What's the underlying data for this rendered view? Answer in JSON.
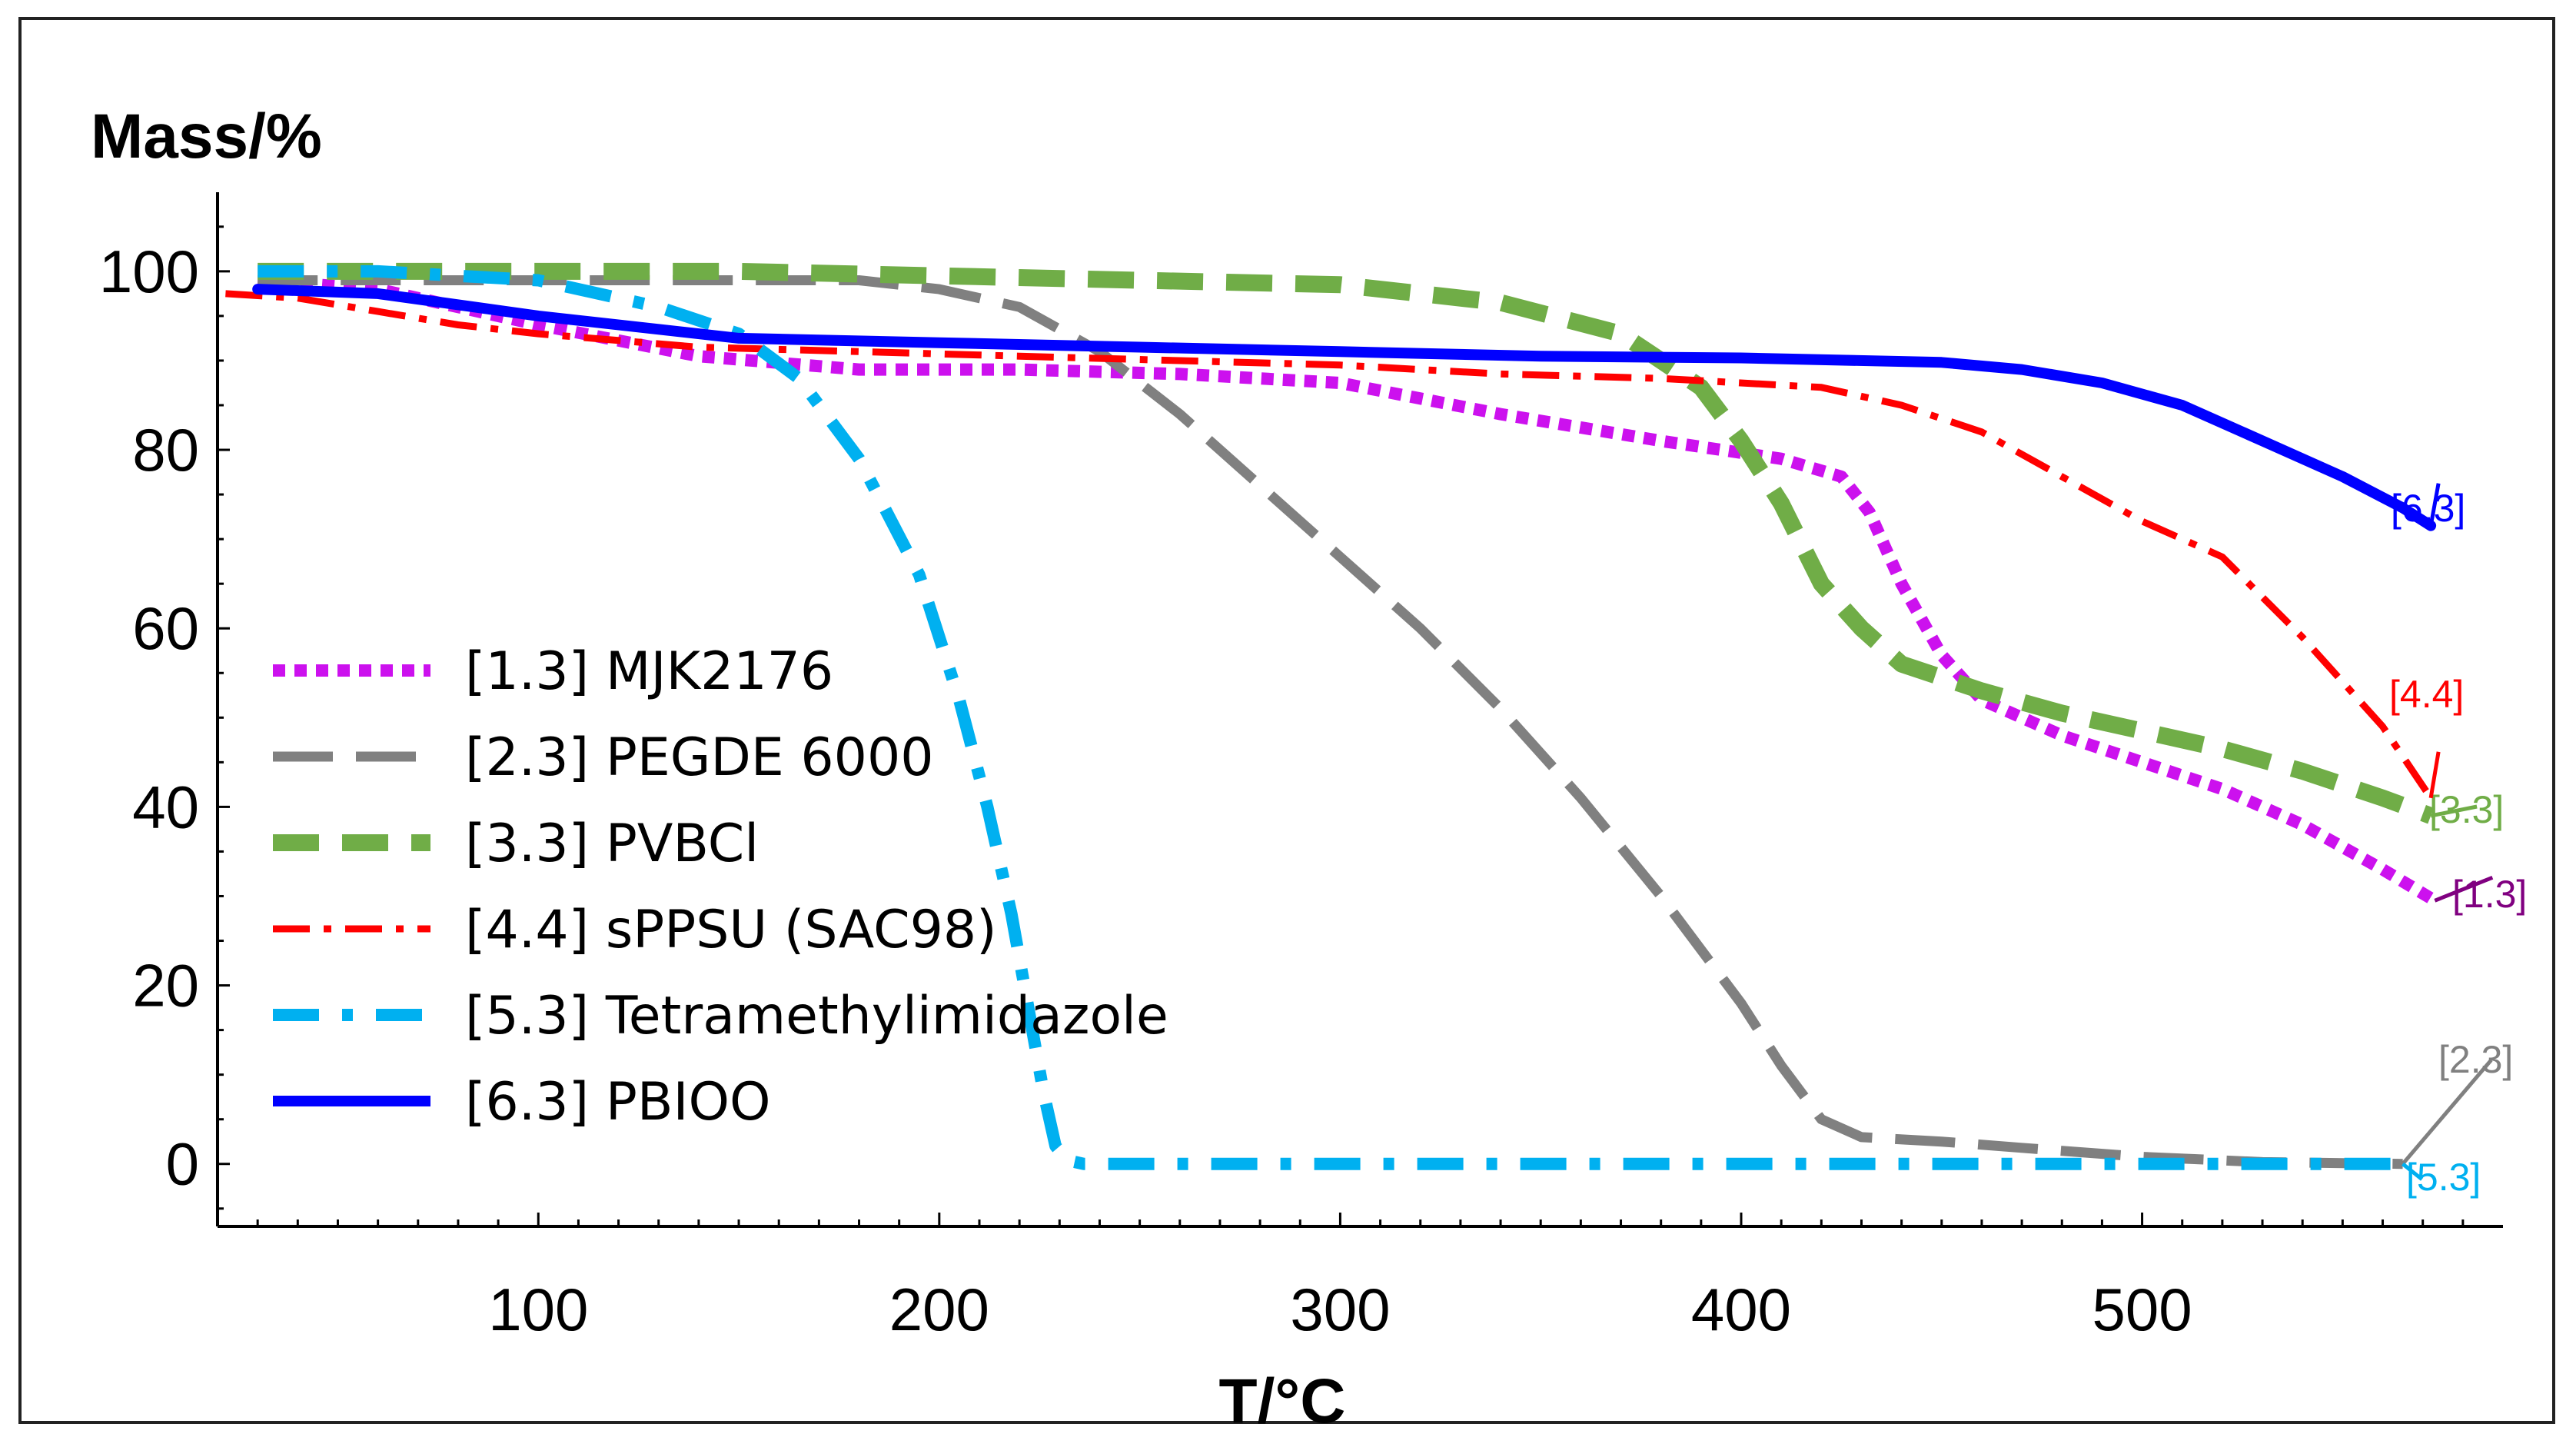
{
  "chart_data": {
    "type": "line",
    "title": "",
    "xlabel": "T/°C",
    "ylabel": "Mass/%",
    "xlim": [
      20,
      590
    ],
    "ylim": [
      -7,
      108
    ],
    "xticks": [
      100,
      200,
      300,
      400,
      500
    ],
    "xtick_labels": [
      "100",
      "200",
      "300",
      "400",
      "500"
    ],
    "yticks": [
      0,
      20,
      40,
      60,
      80,
      100
    ],
    "ytick_labels": [
      "0",
      "20",
      "40",
      "60",
      "80",
      "100"
    ],
    "legend_position": "bottom-left",
    "series": [
      {
        "id": "s1",
        "name": "[1.3] MJK2176",
        "end_label": "[1.3]",
        "color": "#cc11ee",
        "label_color": "#800080",
        "style": "dotted",
        "x": [
          30,
          60,
          100,
          140,
          180,
          220,
          260,
          300,
          340,
          380,
          410,
          425,
          432,
          440,
          450,
          460,
          480,
          500,
          520,
          540,
          560,
          573
        ],
        "y": [
          99,
          98,
          94,
          90.5,
          89,
          89,
          88.5,
          87.5,
          84,
          81,
          79,
          77,
          73,
          65,
          57,
          52,
          48,
          45,
          42,
          38,
          33,
          29.5
        ]
      },
      {
        "id": "s2",
        "name": "[2.3] PEGDE 6000",
        "end_label": "[2.3]",
        "color": "#808080",
        "label_color": "#808080",
        "style": "long-dash",
        "x": [
          30,
          60,
          100,
          140,
          180,
          200,
          220,
          240,
          260,
          280,
          300,
          320,
          340,
          360,
          380,
          400,
          410,
          420,
          430,
          450,
          470,
          500,
          530,
          565
        ],
        "y": [
          99,
          99,
          99,
          99,
          99,
          98,
          96,
          91,
          84,
          76,
          68,
          60,
          51,
          41,
          30,
          18,
          11,
          5,
          3,
          2.5,
          1.8,
          0.8,
          0.2,
          0
        ]
      },
      {
        "id": "s3",
        "name": "[3.3] PVBCl",
        "end_label": "[3.3]",
        "color": "#70ad47",
        "label_color": "#70ad47",
        "style": "dashed",
        "x": [
          30,
          60,
          100,
          150,
          200,
          250,
          300,
          340,
          370,
          390,
          400,
          410,
          420,
          430,
          440,
          460,
          480,
          500,
          520,
          540,
          560,
          572
        ],
        "y": [
          100,
          100,
          100,
          100,
          99.5,
          99,
          98.5,
          96.5,
          93,
          87,
          81,
          74,
          65,
          60,
          56,
          53,
          50.5,
          48.5,
          46.5,
          44,
          41,
          39
        ]
      },
      {
        "id": "s4",
        "name": "[4.4] sPPSU (SAC98)",
        "end_label": "[4.4]",
        "color": "#ff0000",
        "label_color": "#ff0000",
        "style": "dash-dot-dot",
        "x": [
          22,
          40,
          60,
          80,
          100,
          140,
          180,
          220,
          260,
          300,
          340,
          380,
          420,
          440,
          460,
          480,
          500,
          520,
          540,
          560,
          572
        ],
        "y": [
          97.5,
          97,
          95.5,
          94,
          93,
          91.5,
          91,
          90.5,
          90,
          89.5,
          88.5,
          88,
          87,
          85,
          82,
          77,
          72,
          68,
          59,
          49,
          41
        ]
      },
      {
        "id": "s5",
        "name": "[5.3] Tetramethylimidazole",
        "end_label": "[5.3]",
        "color": "#00b0f0",
        "label_color": "#00b0f0",
        "style": "dash-dot",
        "x": [
          30,
          60,
          100,
          130,
          150,
          165,
          180,
          195,
          205,
          212,
          218,
          222,
          226,
          229,
          232,
          236,
          250,
          300,
          400,
          500,
          565
        ],
        "y": [
          100,
          100,
          99,
          96,
          93,
          88,
          79,
          66,
          52,
          40,
          28,
          18,
          8,
          2,
          0.4,
          0,
          0,
          0,
          0,
          0,
          0
        ]
      },
      {
        "id": "s6",
        "name": "[6.3] PBIOO",
        "end_label": "[6.3]",
        "color": "#0000ff",
        "label_color": "#0000ff",
        "style": "solid",
        "x": [
          30,
          60,
          100,
          150,
          200,
          250,
          300,
          350,
          400,
          450,
          470,
          490,
          510,
          530,
          550,
          565,
          572
        ],
        "y": [
          98,
          97.5,
          95,
          92.5,
          92,
          91.5,
          91,
          90.5,
          90.3,
          89.8,
          89,
          87.5,
          85,
          81,
          77,
          73.5,
          71.5
        ]
      }
    ]
  }
}
